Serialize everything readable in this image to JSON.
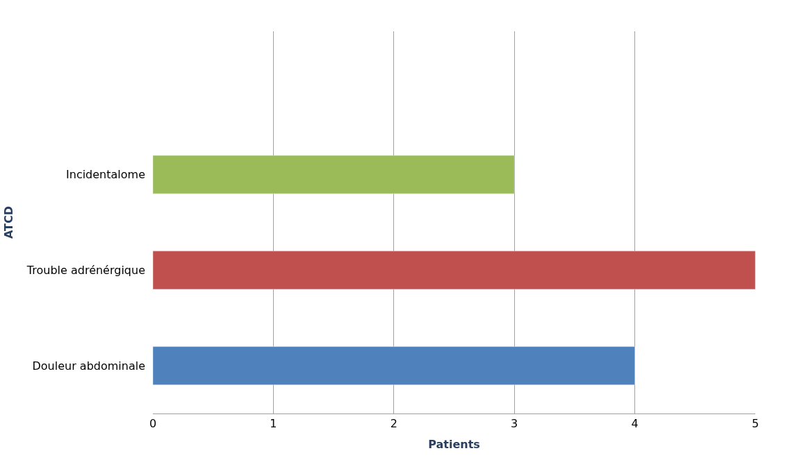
{
  "chart_data": {
    "type": "bar",
    "orientation": "horizontal",
    "categories": [
      "Incidentalome",
      "Trouble adrénérgique",
      "Douleur abdominale"
    ],
    "values": [
      3,
      5,
      4
    ],
    "colors": [
      "#9bbb59",
      "#c0504d",
      "#4f81bd"
    ],
    "xlim": [
      0,
      5
    ],
    "xticks": [
      0,
      1,
      2,
      3,
      4,
      5
    ],
    "grid": "x",
    "xlabel": "Patients",
    "ylabel": "ATCD"
  }
}
